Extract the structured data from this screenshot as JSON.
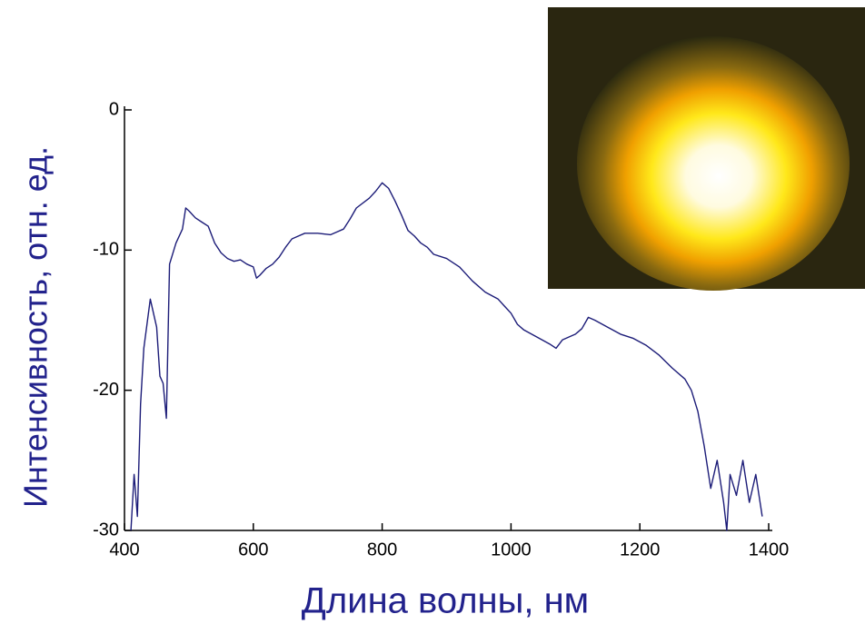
{
  "chart_data": {
    "type": "line",
    "x_label": "Длина волны, нм",
    "y_label": "Интенсивность, отн. ед.",
    "x": [
      410,
      415,
      420,
      425,
      430,
      440,
      450,
      455,
      460,
      465,
      470,
      480,
      490,
      495,
      500,
      510,
      520,
      530,
      540,
      550,
      560,
      570,
      580,
      590,
      600,
      605,
      610,
      620,
      630,
      640,
      650,
      660,
      670,
      680,
      700,
      720,
      740,
      750,
      760,
      780,
      790,
      800,
      810,
      820,
      830,
      840,
      850,
      860,
      870,
      880,
      900,
      920,
      940,
      960,
      980,
      990,
      1000,
      1010,
      1020,
      1040,
      1060,
      1070,
      1080,
      1100,
      1110,
      1120,
      1130,
      1150,
      1170,
      1190,
      1210,
      1230,
      1250,
      1270,
      1280,
      1290,
      1300,
      1310,
      1320,
      1330,
      1335,
      1340,
      1350,
      1360,
      1370,
      1380,
      1390
    ],
    "values": [
      -30,
      -26,
      -29,
      -21,
      -17,
      -13.5,
      -15.5,
      -19,
      -19.5,
      -22,
      -11,
      -9.5,
      -8.5,
      -7,
      -7.2,
      -7.7,
      -8,
      -8.3,
      -9.5,
      -10.2,
      -10.6,
      -10.8,
      -10.7,
      -11,
      -11.2,
      -12,
      -11.8,
      -11.3,
      -11,
      -10.5,
      -9.8,
      -9.2,
      -9,
      -8.8,
      -8.8,
      -8.9,
      -8.5,
      -7.8,
      -7,
      -6.3,
      -5.8,
      -5.2,
      -5.6,
      -6.5,
      -7.5,
      -8.6,
      -9,
      -9.5,
      -9.8,
      -10.3,
      -10.6,
      -11.2,
      -12.2,
      -13,
      -13.5,
      -14,
      -14.5,
      -15.3,
      -15.7,
      -16.2,
      -16.7,
      -17,
      -16.4,
      -16,
      -15.6,
      -14.8,
      -15,
      -15.5,
      -16,
      -16.3,
      -16.8,
      -17.5,
      -18.4,
      -19.2,
      -20,
      -21.5,
      -24,
      -27,
      -25,
      -28,
      -30,
      -26,
      -27.5,
      -25,
      -28,
      -26,
      -29
    ],
    "color": "#1c1c78",
    "xlim": [
      400,
      1400
    ],
    "ylim": [
      -30,
      0
    ],
    "xticks": [
      400,
      600,
      800,
      1000,
      1200,
      1400
    ],
    "yticks": [
      0,
      -10,
      -20,
      -30
    ]
  }
}
